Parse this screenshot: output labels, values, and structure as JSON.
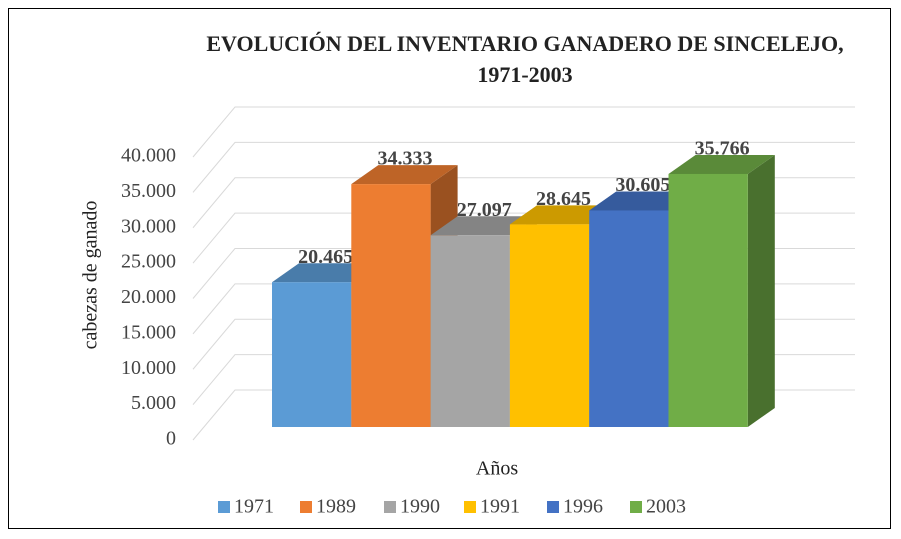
{
  "chart_data": {
    "type": "bar3d",
    "title": "EVOLUCIÓN DEL INVENTARIO GANADERO DE SINCELEJO, 1971-2003",
    "x_label": "Años",
    "y_label": "cabezas de ganado",
    "ylim": [
      0,
      40000
    ],
    "yticks": [
      0,
      {
        "value": 5000,
        "label": "5.000"
      },
      {
        "value": 10000,
        "label": "10.000"
      },
      {
        "value": 15000,
        "label": "15.000"
      },
      {
        "value": 20000,
        "label": "20.000"
      },
      {
        "value": 25000,
        "label": "25.000"
      },
      {
        "value": 30000,
        "label": "30.000"
      },
      {
        "value": 35000,
        "label": "35.000"
      },
      {
        "value": 40000,
        "label": "40.000"
      }
    ],
    "grid": true,
    "legend": "bottom",
    "series": [
      {
        "name": "1971",
        "color": "#5b9bd5",
        "values": [
          20465
        ],
        "value_labels": [
          "20.465"
        ]
      },
      {
        "name": "1989",
        "color": "#ed7d31",
        "values": [
          34333
        ],
        "value_labels": [
          "34.333"
        ]
      },
      {
        "name": "1990",
        "color": "#a5a5a5",
        "values": [
          27097
        ],
        "value_labels": [
          "27.097"
        ]
      },
      {
        "name": "1991",
        "color": "#ffc000",
        "values": [
          28645
        ],
        "value_labels": [
          "28.645"
        ]
      },
      {
        "name": "1996",
        "color": "#4472c4",
        "values": [
          30605
        ],
        "value_labels": [
          "30.605"
        ]
      },
      {
        "name": "2003",
        "color": "#70ad47",
        "values": [
          35766
        ],
        "value_labels": [
          "35.766"
        ]
      }
    ]
  }
}
